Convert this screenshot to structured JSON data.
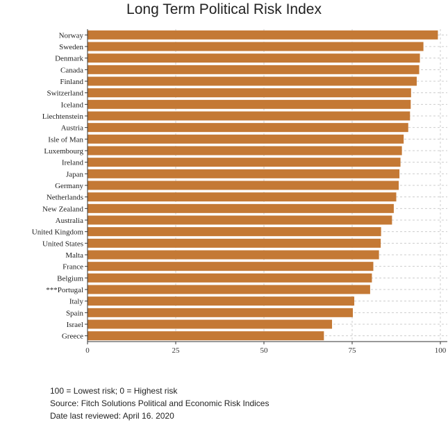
{
  "chart_data": {
    "type": "bar",
    "orientation": "horizontal",
    "title": "Long Term Political Risk Index",
    "categories": [
      "Norway",
      "Sweden",
      "Denmark",
      "Canada",
      "Finland",
      "Switzerland",
      "Iceland",
      "Liechtenstein",
      "Austria",
      "Isle of Man",
      "Luxembourg",
      "Ireland",
      "Japan",
      "Germany",
      "Netherlands",
      "New Zealand",
      "Australia",
      "United Kingdom",
      "United States",
      "Malta",
      "France",
      "Belgium",
      "***Portugal",
      "Italy",
      "Spain",
      "Israel",
      "Greece"
    ],
    "values": [
      99.3,
      95.2,
      94.2,
      94.0,
      93.3,
      91.7,
      91.6,
      91.4,
      90.9,
      89.6,
      89.1,
      88.7,
      88.4,
      88.2,
      87.5,
      86.8,
      86.3,
      83.2,
      83.1,
      82.6,
      81.0,
      80.6,
      80.1,
      75.6,
      75.2,
      69.3,
      67.0
    ],
    "xlim": [
      0,
      100
    ],
    "xticks": [
      "0",
      "25",
      "50",
      "75",
      "100"
    ],
    "xgrid": true,
    "ygrid": true,
    "bar_color": "#c47935",
    "grid_color": "#cccccc"
  },
  "footnotes": [
    "100 = Lowest risk; 0 = Highest risk",
    "Source: Fitch Solutions Political and Economic Risk Indices",
    "Date last reviewed: April 16. 2020"
  ]
}
